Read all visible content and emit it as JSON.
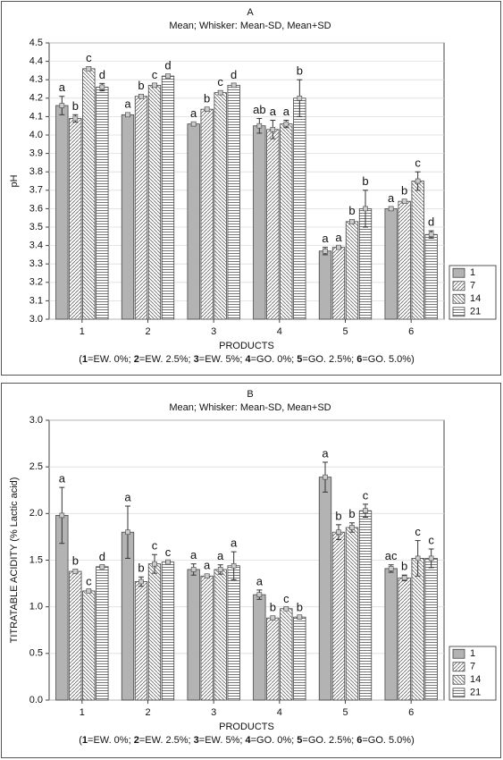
{
  "chart_data": [
    {
      "type": "bar",
      "title": "A",
      "subtitle": "Mean;  Whisker: Mean-SD, Mean+SD",
      "xlabel": "PRODUCTS",
      "ylabel": "pH",
      "footnote": [
        {
          "number": "1",
          "label": "=EW. 0%; "
        },
        {
          "number": "2",
          "label": "=EW. 2.5%; "
        },
        {
          "number": "3",
          "label": "=EW. 5%; "
        },
        {
          "number": "4",
          "label": "=GO. 0%; "
        },
        {
          "number": "5",
          "label": "=GO. 2.5%; "
        },
        {
          "number": "6",
          "label": "=GO. 5.0%)"
        }
      ],
      "footnote_open": "(",
      "categories": [
        "1",
        "2",
        "3",
        "4",
        "5",
        "6"
      ],
      "series": [
        {
          "name": "1",
          "color": "#b3b3b3",
          "pattern": "solid",
          "values": [
            4.16,
            4.11,
            4.06,
            4.05,
            3.37,
            3.6
          ],
          "errors": [
            0.05,
            0.01,
            0.01,
            0.04,
            0.02,
            0.01
          ],
          "letters": [
            "a",
            "a",
            "a",
            "ab",
            "a",
            "a"
          ]
        },
        {
          "name": "7",
          "color": "#888888",
          "pattern": "diagonal",
          "values": [
            4.09,
            4.21,
            4.14,
            4.03,
            3.39,
            3.64
          ],
          "errors": [
            0.02,
            0.01,
            0.01,
            0.05,
            0.005,
            0.01
          ],
          "letters": [
            "b",
            "b",
            "b",
            "a",
            "a",
            "b"
          ]
        },
        {
          "name": "14",
          "color": "#888888",
          "pattern": "backdiagonal",
          "values": [
            4.36,
            4.27,
            4.23,
            4.06,
            3.53,
            3.75
          ],
          "errors": [
            0.01,
            0.01,
            0.01,
            0.02,
            0.01,
            0.05
          ],
          "letters": [
            "c",
            "c",
            "c",
            "a",
            "b",
            "c"
          ]
        },
        {
          "name": "21",
          "color": "#777777",
          "pattern": "horizontal",
          "values": [
            4.26,
            4.32,
            4.27,
            4.2,
            3.6,
            3.46
          ],
          "errors": [
            0.02,
            0.01,
            0.01,
            0.1,
            0.1,
            0.02
          ],
          "letters": [
            "d",
            "d",
            "d",
            "b",
            "b",
            "d"
          ]
        }
      ],
      "ylim": [
        3.0,
        4.5
      ],
      "yticks": [
        {
          "value": 3,
          "label": "3.0"
        },
        3.1,
        3.2,
        3.3,
        3.4,
        3.5,
        3.6,
        3.7,
        3.8,
        3.9,
        {
          "value": 4,
          "label": "4.0"
        },
        4.1,
        4.2,
        4.3,
        4.4,
        4.5
      ],
      "grid": true,
      "legend": "lower right"
    },
    {
      "type": "bar",
      "title": "B",
      "subtitle": "Mean;  Whisker: Mean-SD, Mean+SD",
      "xlabel": "PRODUCTS",
      "ylabel": "TITRATABLE ACIDITY (% Lactic acid)",
      "footnote": [
        {
          "number": "1",
          "label": "=EW. 0%; "
        },
        {
          "number": "2",
          "label": "=EW. 2.5%; "
        },
        {
          "number": "3",
          "label": "=EW. 5%; "
        },
        {
          "number": "4",
          "label": "=GO. 0%; "
        },
        {
          "number": "5",
          "label": "=GO. 2.5%; "
        },
        {
          "number": "6",
          "label": "=GO. 5.0%)"
        }
      ],
      "footnote_open": "(",
      "categories": [
        "1",
        "2",
        "3",
        "4",
        "5",
        "6"
      ],
      "series": [
        {
          "name": "1",
          "color": "#b3b3b3",
          "pattern": "solid",
          "values": [
            1.98,
            1.8,
            1.4,
            1.13,
            2.39,
            1.41
          ],
          "errors": [
            0.3,
            0.28,
            0.06,
            0.05,
            0.16,
            0.04
          ],
          "letters": [
            "a",
            "a",
            "a",
            "a",
            "a",
            "ac"
          ]
        },
        {
          "name": "7",
          "color": "#888888",
          "pattern": "diagonal",
          "values": [
            1.38,
            1.27,
            1.33,
            0.88,
            1.8,
            1.31
          ],
          "errors": [
            0.02,
            0.05,
            0.02,
            0.02,
            0.08,
            0.03
          ],
          "letters": [
            "b",
            "b",
            "a",
            "b",
            "b",
            "b"
          ]
        },
        {
          "name": "14",
          "color": "#888888",
          "pattern": "backdiagonal",
          "values": [
            1.17,
            1.46,
            1.4,
            0.98,
            1.85,
            1.52
          ],
          "errors": [
            0.01,
            0.1,
            0.05,
            0.01,
            0.05,
            0.19
          ],
          "letters": [
            "c",
            "c",
            "a",
            "c",
            "b",
            "c"
          ]
        },
        {
          "name": "21",
          "color": "#777777",
          "pattern": "horizontal",
          "values": [
            1.43,
            1.48,
            1.44,
            0.89,
            2.03,
            1.52
          ],
          "errors": [
            0.01,
            0.01,
            0.15,
            0.01,
            0.07,
            0.1
          ],
          "letters": [
            "d",
            "c",
            "a",
            "b",
            "c",
            "c"
          ]
        }
      ],
      "ylim": [
        0.0,
        3.0
      ],
      "yticks": [
        {
          "value": 0,
          "label": "0.0"
        },
        0.5,
        {
          "value": 1,
          "label": "1.0"
        },
        1.5,
        {
          "value": 2,
          "label": "2.0"
        },
        2.5,
        {
          "value": 3,
          "label": "3.0"
        }
      ],
      "grid": true,
      "legend": "lower right"
    }
  ]
}
